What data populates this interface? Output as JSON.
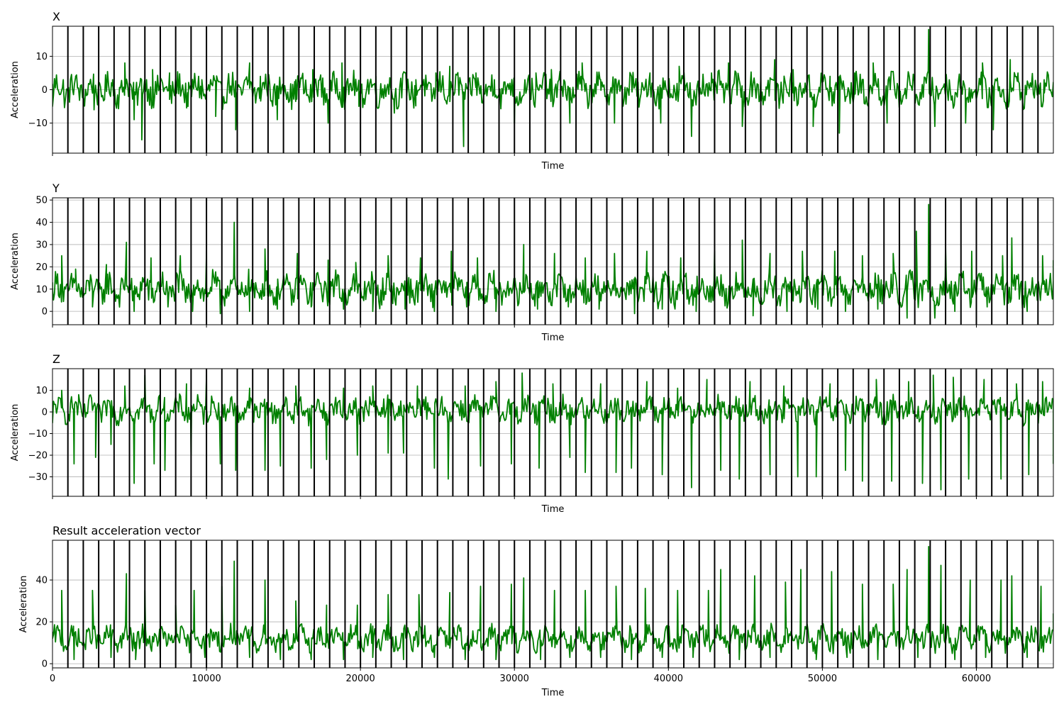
{
  "chart_data": [
    {
      "type": "line",
      "title": "X",
      "xlabel": "Time",
      "ylabel": "Acceleration",
      "xlim": [
        0,
        65000
      ],
      "ylim": [
        -19,
        19
      ],
      "yticks": [
        -10,
        0,
        10
      ],
      "xticks": [
        0,
        10000,
        20000,
        30000,
        40000,
        50000,
        60000
      ],
      "show_xtick_labels": false,
      "grid": "y",
      "vlines_every": 1000,
      "series": [
        {
          "color": "#008000",
          "baseline": 0,
          "noise_amplitude": 4,
          "x": [
            0,
            700,
            1500,
            2700,
            3900,
            4700,
            5300,
            5800,
            6500,
            7600,
            8800,
            9700,
            10600,
            11900,
            12800,
            13500,
            14600,
            15800,
            16900,
            17900,
            18800,
            19900,
            21000,
            22200,
            23600,
            24900,
            25800,
            26700,
            27500,
            28700,
            30000,
            31400,
            32400,
            33600,
            34400,
            35600,
            36500,
            37600,
            38800,
            39500,
            40700,
            41500,
            42800,
            43900,
            44800,
            46000,
            46900,
            48100,
            49400,
            50500,
            51100,
            52100,
            53300,
            54200,
            55600,
            56900,
            57300,
            58900,
            59300,
            60400,
            61100,
            62200,
            62700,
            64400
          ],
          "y": [
            -5,
            3,
            4,
            -6,
            3,
            8,
            -9,
            -15,
            6,
            5,
            -5,
            3,
            -8,
            -12,
            8,
            4,
            -9,
            3,
            6,
            -10,
            8,
            -5,
            4,
            -7,
            3,
            5,
            7,
            -17,
            5,
            3,
            -10,
            5,
            6,
            -10,
            8,
            3,
            -10,
            4,
            5,
            -10,
            7,
            -14,
            5,
            8,
            -11,
            4,
            9,
            6,
            -11,
            4,
            -13,
            5,
            8,
            -10,
            5,
            18,
            -11,
            4,
            -10,
            8,
            -12,
            9,
            5,
            3
          ]
        }
      ]
    },
    {
      "type": "line",
      "title": "Y",
      "xlabel": "Time",
      "ylabel": "Acceleration",
      "xlim": [
        0,
        65000
      ],
      "ylim": [
        -6,
        51
      ],
      "yticks": [
        0,
        10,
        20,
        30,
        40,
        50
      ],
      "xticks": [
        0,
        10000,
        20000,
        30000,
        40000,
        50000,
        60000
      ],
      "show_xtick_labels": false,
      "grid": "y",
      "vlines_every": 1000,
      "series": [
        {
          "color": "#008000",
          "baseline": 10,
          "noise_amplitude": 6,
          "x": [
            0,
            600,
            1500,
            2600,
            3500,
            4800,
            5300,
            6400,
            7500,
            8300,
            9100,
            10000,
            10900,
            11800,
            12800,
            13800,
            14600,
            15900,
            16800,
            17900,
            18900,
            19700,
            20800,
            21800,
            22900,
            23900,
            24800,
            25900,
            26900,
            27600,
            28800,
            30600,
            31500,
            32600,
            33500,
            34600,
            35500,
            36500,
            37800,
            38600,
            39600,
            40800,
            41800,
            43000,
            44000,
            44800,
            45500,
            46600,
            47700,
            48700,
            49700,
            50800,
            51500,
            52600,
            53600,
            54600,
            55500,
            56100,
            56900,
            57300,
            58000,
            58600,
            59700,
            60700,
            61700,
            62300,
            63300,
            64300,
            65000
          ],
          "y": [
            10,
            25,
            19,
            2,
            21,
            31,
            0,
            24,
            2,
            25,
            0,
            27,
            -1,
            40,
            0,
            28,
            1,
            26,
            2,
            23,
            1,
            22,
            0,
            25,
            1,
            24,
            0,
            27,
            2,
            24,
            0,
            30,
            1,
            26,
            2,
            24,
            1,
            26,
            -1,
            27,
            1,
            24,
            0,
            27,
            0,
            32,
            -2,
            26,
            0,
            27,
            1,
            27,
            0,
            25,
            1,
            26,
            -3,
            36,
            48,
            -3,
            30,
            0,
            27,
            2,
            25,
            33,
            0,
            25,
            23
          ]
        }
      ]
    },
    {
      "type": "line",
      "title": "Z",
      "xlabel": "Time",
      "ylabel": "Acceleration",
      "xlim": [
        0,
        65000
      ],
      "ylim": [
        -39,
        20
      ],
      "yticks": [
        -30,
        -20,
        -10,
        0,
        10
      ],
      "xticks": [
        0,
        10000,
        20000,
        30000,
        40000,
        50000,
        60000
      ],
      "show_xtick_labels": false,
      "grid": "y",
      "vlines_every": 1000,
      "series": [
        {
          "color": "#008000",
          "baseline": 1,
          "noise_amplitude": 5,
          "x": [
            0,
            600,
            1400,
            1700,
            2800,
            3800,
            4700,
            5300,
            6000,
            6600,
            7300,
            8700,
            9000,
            10000,
            10900,
            11900,
            12800,
            13800,
            14800,
            15800,
            16800,
            17800,
            18900,
            19800,
            20800,
            21800,
            22800,
            23700,
            24800,
            25700,
            26800,
            27800,
            28800,
            29800,
            30500,
            31600,
            32500,
            33600,
            34600,
            35600,
            36600,
            37600,
            38600,
            39600,
            40600,
            41500,
            42500,
            43400,
            44600,
            45300,
            46600,
            47500,
            48400,
            49600,
            50500,
            51500,
            52600,
            53500,
            54500,
            55600,
            56500,
            57200,
            57700,
            58500,
            59500,
            60500,
            61600,
            62600,
            63400,
            64300,
            65000
          ],
          "y": [
            -5,
            10,
            -24,
            8,
            -21,
            -15,
            12,
            -33,
            17,
            -24,
            -27,
            13,
            -20,
            17,
            -24,
            -27,
            11,
            -27,
            -25,
            12,
            -26,
            -22,
            11,
            -20,
            12,
            -19,
            -19,
            12,
            -26,
            -31,
            12,
            -25,
            14,
            -24,
            18,
            -26,
            13,
            -21,
            -28,
            13,
            -28,
            -26,
            14,
            -29,
            11,
            -35,
            15,
            -27,
            -31,
            14,
            -29,
            12,
            -30,
            -30,
            13,
            -27,
            -32,
            15,
            -32,
            14,
            -33,
            17,
            -36,
            16,
            -31,
            15,
            -31,
            13,
            -29,
            14,
            -24
          ]
        }
      ]
    },
    {
      "type": "line",
      "title": "Result acceleration vector",
      "xlabel": "Time",
      "ylabel": "Acceleration",
      "xlim": [
        0,
        65000
      ],
      "ylim": [
        -2,
        59
      ],
      "yticks": [
        0,
        20,
        40
      ],
      "xticks": [
        0,
        10000,
        20000,
        30000,
        40000,
        50000,
        60000
      ],
      "show_xtick_labels": true,
      "grid": "y",
      "vlines_every": 1000,
      "series": [
        {
          "color": "#008000",
          "baseline": 12,
          "noise_amplitude": 5,
          "x": [
            0,
            600,
            1400,
            2600,
            3800,
            4800,
            5400,
            6000,
            7000,
            8000,
            9200,
            9900,
            11000,
            11800,
            12800,
            13800,
            14800,
            15800,
            16800,
            17800,
            18900,
            19800,
            20800,
            21800,
            22800,
            23800,
            24800,
            25800,
            26800,
            27800,
            28800,
            29800,
            30600,
            31700,
            32600,
            33600,
            34600,
            35600,
            36600,
            37600,
            38500,
            39600,
            40600,
            41600,
            42600,
            43400,
            44600,
            45600,
            46600,
            47600,
            48600,
            49600,
            50600,
            51600,
            52600,
            53600,
            54600,
            55500,
            56200,
            56900,
            57700,
            58600,
            59600,
            60600,
            61600,
            62300,
            63300,
            64200,
            65000
          ],
          "y": [
            12,
            35,
            2,
            35,
            3,
            43,
            2,
            35,
            3,
            28,
            35,
            3,
            37,
            49,
            3,
            40,
            2,
            30,
            2,
            28,
            2,
            28,
            3,
            33,
            2,
            33,
            3,
            34,
            2,
            37,
            2,
            38,
            41,
            2,
            35,
            3,
            35,
            3,
            37,
            2,
            36,
            3,
            35,
            3,
            35,
            45,
            2,
            42,
            3,
            39,
            45,
            2,
            44,
            3,
            38,
            2,
            38,
            45,
            3,
            56,
            47,
            2,
            40,
            3,
            40,
            42,
            3,
            37,
            24
          ]
        }
      ]
    }
  ]
}
